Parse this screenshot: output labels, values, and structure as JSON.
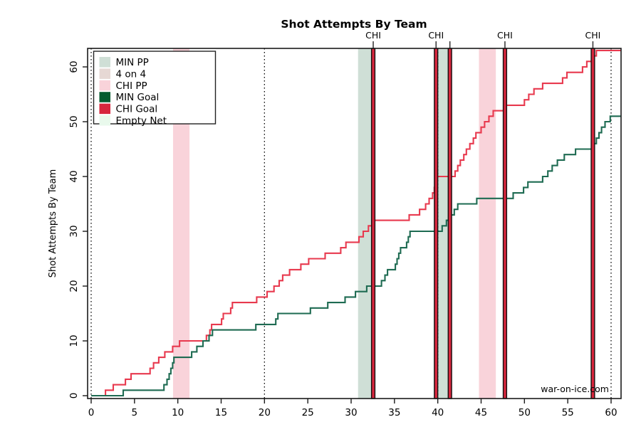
{
  "chart_data": {
    "type": "line",
    "subtype": "step-cumulative",
    "title": "Shot Attempts By Team",
    "ylabel": "Shot Attempts By Team",
    "xlabel": "",
    "watermark": "war-on-ice.com",
    "xlim": [
      0,
      61.1
    ],
    "ylim": [
      0,
      63.4
    ],
    "x_ticks": [
      0,
      5,
      10,
      15,
      20,
      25,
      30,
      35,
      40,
      45,
      50,
      55,
      60
    ],
    "y_ticks": [
      0,
      10,
      20,
      30,
      40,
      50,
      60
    ],
    "grid": false,
    "legend_position": "top-left",
    "period_lines": [
      0,
      20,
      40,
      60
    ],
    "colors": {
      "chi_line": "#e8394e",
      "min_line": "#1e6b52",
      "goal_red": "#d7263d",
      "goal_green": "#045b2f",
      "min_pp_band": "#cfdfd6",
      "four_on_four_band": "#e6d8d4",
      "chi_pp_band": "#f9d3da",
      "empty_net_band": "#e9f9ec",
      "watermark_gray": "#3f3f3f",
      "axis_black": "#1a1a1a"
    },
    "legend": [
      {
        "label": "MIN PP",
        "color": "#cfdfd6"
      },
      {
        "label": "4 on 4",
        "color": "#e6d8d4"
      },
      {
        "label": "CHI PP",
        "color": "#f9d3da"
      },
      {
        "label": "MIN Goal",
        "color": "#045b2f"
      },
      {
        "label": "CHI Goal",
        "color": "#d7263d"
      },
      {
        "label": "Empty Net",
        "color": "#e9f9ec"
      }
    ],
    "bands": [
      {
        "kind": "CHI PP",
        "x1": 9.45,
        "x2": 11.35,
        "color": "#f9d3da"
      },
      {
        "kind": "MIN PP",
        "x1": 30.8,
        "x2": 32.5,
        "color": "#cfdfd6"
      },
      {
        "kind": "MIN PP",
        "x1": 39.95,
        "x2": 41.35,
        "color": "#cfdfd6"
      },
      {
        "kind": "CHI PP",
        "x1": 44.75,
        "x2": 46.7,
        "color": "#f9d3da"
      },
      {
        "kind": "Empty Net",
        "x1": 57.65,
        "x2": 58.05,
        "color": "#e9f9ec"
      }
    ],
    "goals": [
      {
        "x": 32.55,
        "team": "CHI",
        "label": true
      },
      {
        "x": 39.8,
        "team": "CHI",
        "label": true
      },
      {
        "x": 41.4,
        "team": "CHI",
        "label": false
      },
      {
        "x": 47.75,
        "team": "CHI",
        "label": true
      },
      {
        "x": 57.9,
        "team": "CHI",
        "label": true
      }
    ],
    "series": [
      {
        "name": "CHI shot attempts",
        "color": "#e8394e",
        "final_value": 63,
        "steps": [
          [
            1.65,
            1
          ],
          [
            2.55,
            2
          ],
          [
            3.95,
            3
          ],
          [
            4.6,
            4
          ],
          [
            6.8,
            5
          ],
          [
            7.2,
            6
          ],
          [
            7.8,
            7
          ],
          [
            8.5,
            8
          ],
          [
            9.4,
            9
          ],
          [
            10.2,
            10
          ],
          [
            13.3,
            11
          ],
          [
            13.7,
            12
          ],
          [
            13.9,
            13
          ],
          [
            15.05,
            14
          ],
          [
            15.25,
            15
          ],
          [
            16.1,
            16
          ],
          [
            16.3,
            17
          ],
          [
            19.1,
            18
          ],
          [
            20.3,
            19
          ],
          [
            21.1,
            20
          ],
          [
            21.7,
            21
          ],
          [
            22.1,
            22
          ],
          [
            22.9,
            23
          ],
          [
            24.2,
            24
          ],
          [
            25.1,
            25
          ],
          [
            27.0,
            26
          ],
          [
            28.8,
            27
          ],
          [
            29.4,
            28
          ],
          [
            30.9,
            29
          ],
          [
            31.4,
            30
          ],
          [
            32.0,
            31
          ],
          [
            32.55,
            32
          ],
          [
            36.7,
            33
          ],
          [
            37.9,
            34
          ],
          [
            38.6,
            35
          ],
          [
            39.0,
            36
          ],
          [
            39.4,
            37
          ],
          [
            39.6,
            38
          ],
          [
            39.7,
            39
          ],
          [
            39.8,
            40
          ],
          [
            42.0,
            41
          ],
          [
            42.3,
            42
          ],
          [
            42.6,
            43
          ],
          [
            43.0,
            44
          ],
          [
            43.3,
            45
          ],
          [
            43.7,
            46
          ],
          [
            44.1,
            47
          ],
          [
            44.4,
            48
          ],
          [
            45.0,
            49
          ],
          [
            45.4,
            50
          ],
          [
            45.9,
            51
          ],
          [
            46.4,
            52
          ],
          [
            47.75,
            53
          ],
          [
            50.0,
            54
          ],
          [
            50.5,
            55
          ],
          [
            51.1,
            56
          ],
          [
            52.1,
            57
          ],
          [
            54.4,
            58
          ],
          [
            54.9,
            59
          ],
          [
            56.7,
            60
          ],
          [
            57.2,
            61
          ],
          [
            57.9,
            62
          ],
          [
            58.3,
            63
          ]
        ]
      },
      {
        "name": "MIN shot attempts",
        "color": "#1e6b52",
        "final_value": 51,
        "steps": [
          [
            3.7,
            1
          ],
          [
            8.4,
            2
          ],
          [
            8.75,
            3
          ],
          [
            9.0,
            4
          ],
          [
            9.2,
            5
          ],
          [
            9.4,
            6
          ],
          [
            9.55,
            7
          ],
          [
            11.6,
            8
          ],
          [
            12.2,
            9
          ],
          [
            12.9,
            10
          ],
          [
            13.6,
            11
          ],
          [
            14.0,
            12
          ],
          [
            19.0,
            13
          ],
          [
            21.3,
            14
          ],
          [
            21.55,
            15
          ],
          [
            25.3,
            16
          ],
          [
            27.3,
            17
          ],
          [
            29.3,
            18
          ],
          [
            30.5,
            19
          ],
          [
            31.8,
            20
          ],
          [
            33.5,
            21
          ],
          [
            33.9,
            22
          ],
          [
            34.2,
            23
          ],
          [
            35.1,
            24
          ],
          [
            35.3,
            25
          ],
          [
            35.5,
            26
          ],
          [
            35.7,
            27
          ],
          [
            36.4,
            28
          ],
          [
            36.6,
            29
          ],
          [
            36.8,
            30
          ],
          [
            40.5,
            31
          ],
          [
            41.0,
            32
          ],
          [
            41.5,
            33
          ],
          [
            41.9,
            34
          ],
          [
            42.3,
            35
          ],
          [
            44.5,
            36
          ],
          [
            48.7,
            37
          ],
          [
            49.9,
            38
          ],
          [
            50.4,
            39
          ],
          [
            52.1,
            40
          ],
          [
            52.7,
            41
          ],
          [
            53.2,
            42
          ],
          [
            53.8,
            43
          ],
          [
            54.6,
            44
          ],
          [
            55.9,
            45
          ],
          [
            58.0,
            46
          ],
          [
            58.3,
            47
          ],
          [
            58.6,
            48
          ],
          [
            58.9,
            49
          ],
          [
            59.3,
            50
          ],
          [
            59.9,
            51
          ]
        ]
      }
    ]
  }
}
